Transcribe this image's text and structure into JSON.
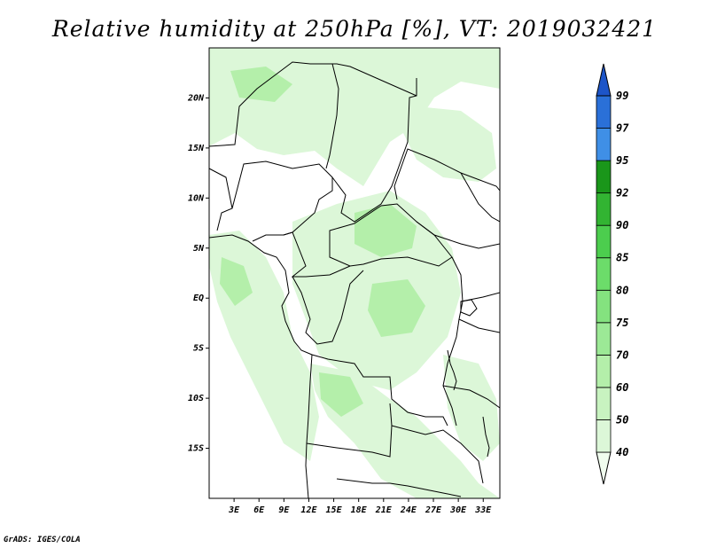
{
  "title": "Relative humidity at 250hPa [%], VT: 2019032421",
  "credit": "GrADS: IGES/COLA",
  "map": {
    "lon_range": [
      0,
      35
    ],
    "lat_range": [
      -20,
      25
    ],
    "lat_ticks": [
      {
        "value": 20,
        "label": "20N"
      },
      {
        "value": 15,
        "label": "15N"
      },
      {
        "value": 10,
        "label": "10N"
      },
      {
        "value": 5,
        "label": "5N"
      },
      {
        "value": 0,
        "label": "EQ"
      },
      {
        "value": -5,
        "label": "5S"
      },
      {
        "value": -10,
        "label": "10S"
      },
      {
        "value": -15,
        "label": "15S"
      }
    ],
    "lon_ticks": [
      {
        "value": 3,
        "label": "3E"
      },
      {
        "value": 6,
        "label": "6E"
      },
      {
        "value": 9,
        "label": "9E"
      },
      {
        "value": 12,
        "label": "12E"
      },
      {
        "value": 15,
        "label": "15E"
      },
      {
        "value": 18,
        "label": "18E"
      },
      {
        "value": 21,
        "label": "21E"
      },
      {
        "value": 24,
        "label": "24E"
      },
      {
        "value": 27,
        "label": "27E"
      },
      {
        "value": 30,
        "label": "30E"
      },
      {
        "value": 33,
        "label": "33E"
      }
    ]
  },
  "colorbar": {
    "levels": [
      40,
      50,
      60,
      70,
      75,
      80,
      85,
      90,
      92,
      95,
      97,
      99
    ],
    "labels": [
      "40",
      "50",
      "60",
      "70",
      "75",
      "80",
      "85",
      "90",
      "92",
      "95",
      "97",
      "99"
    ],
    "colors": [
      "#f0fcee",
      "#dcf7d8",
      "#c8f3c0",
      "#b4efaa",
      "#9ce996",
      "#84e27f",
      "#6cdc6a",
      "#4ccd4e",
      "#32b432",
      "#1a961a",
      "#3f8fe6",
      "#2a70d8",
      "#1d55c8"
    ]
  },
  "colors": {
    "light_green": "#dcf7d8",
    "mid_green": "#b4efaa",
    "boundary": "#000000"
  }
}
